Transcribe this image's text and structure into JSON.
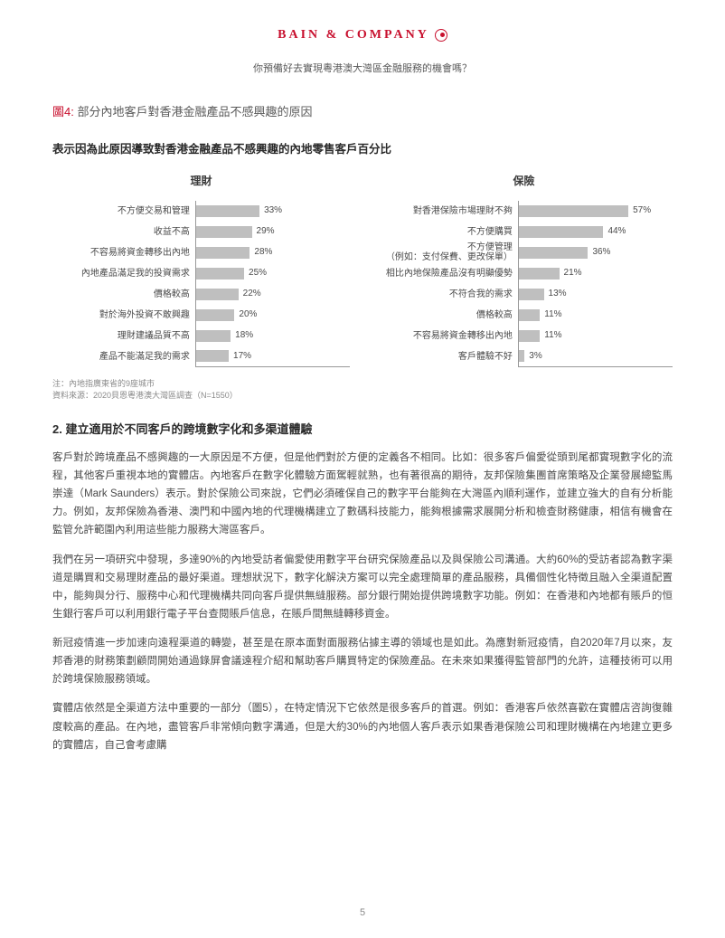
{
  "header": {
    "logo": "BAIN & COMPANY",
    "tagline": "你預備好去實現粵港澳大灣區金融服務的機會嗎？"
  },
  "figure": {
    "num": "圖4:",
    "title": "部分內地客戶對香港金融產品不感興趣的原因",
    "chart_title": "表示因為此原因導致對香港金融產品不感興趣的內地零售客戶百分比",
    "left_head": "理財",
    "right_head": "保險",
    "bar_color": "#bfbfbf",
    "axis_color": "#999999",
    "max_scale_pct": 80,
    "left_bars": [
      {
        "label": "不方便交易和管理",
        "value": 33,
        "text": "33%"
      },
      {
        "label": "收益不高",
        "value": 29,
        "text": "29%"
      },
      {
        "label": "不容易將資金轉移出內地",
        "value": 28,
        "text": "28%"
      },
      {
        "label": "內地產品滿足我的投資需求",
        "value": 25,
        "text": "25%"
      },
      {
        "label": "價格較高",
        "value": 22,
        "text": "22%"
      },
      {
        "label": "對於海外投資不敢興趣",
        "value": 20,
        "text": "20%"
      },
      {
        "label": "理財建議品質不高",
        "value": 18,
        "text": "18%"
      },
      {
        "label": "產品不能滿足我的需求",
        "value": 17,
        "text": "17%"
      }
    ],
    "right_bars": [
      {
        "label": "對香港保險市場理財不夠",
        "value": 57,
        "text": "57%"
      },
      {
        "label": "不方便購買",
        "value": 44,
        "text": "44%"
      },
      {
        "label": "不方便管理\n（例如：支付保費、更改保單）",
        "value": 36,
        "text": "36%"
      },
      {
        "label": "相比內地保險產品沒有明顯優勢",
        "value": 21,
        "text": "21%"
      },
      {
        "label": "不符合我的需求",
        "value": 13,
        "text": "13%"
      },
      {
        "label": "價格較高",
        "value": 11,
        "text": "11%"
      },
      {
        "label": "不容易將資金轉移出內地",
        "value": 11,
        "text": "11%"
      },
      {
        "label": "客戶體驗不好",
        "value": 3,
        "text": "3%"
      }
    ],
    "note_line1": "注：內地指廣東省的9座城市",
    "note_line2": "資料來源：2020貝恩粵港澳大灣區調查（N=1550）"
  },
  "section": {
    "heading": "2. 建立適用於不同客戶的跨境數字化和多渠道體驗",
    "p1": "客戶對於跨境產品不感興趣的一大原因是不方便，但是他們對於方便的定義各不相同。比如：很多客戶偏愛從頭到尾都實現數字化的流程，其他客戶重視本地的實體店。內地客戶在數字化體驗方面駕輕就熟，也有著很高的期待，友邦保險集團首席策略及企業發展總監馬崇達（Mark Saunders）表示。對於保險公司來說，它們必須確保自己的數字平台能夠在大灣區內順利運作，並建立強大的自有分析能力。例如，友邦保險為香港、澳門和中國內地的代理機構建立了數碼科技能力，能夠根據需求展開分析和檢查財務健康，相信有機會在監管允許範圍內利用這些能力服務大灣區客戶。",
    "p2": "我們在另一項研究中發現，多達90%的內地受訪者偏愛使用數字平台研究保險產品以及與保險公司溝通。大約60%的受訪者認為數字渠道是購買和交易理財產品的最好渠道。理想狀況下，數字化解決方案可以完全處理簡單的產品服務，具備個性化特徵且融入全渠道配置中，能夠與分行、服務中心和代理機構共同向客戶提供無縫服務。部分銀行開始提供跨境數字功能。例如：在香港和內地都有賬戶的恒生銀行客戶可以利用銀行電子平台查閱賬戶信息，在賬戶間無縫轉移資金。",
    "p3": "新冠疫情進一步加速向遠程渠道的轉變，甚至是在原本面對面服務佔據主導的領域也是如此。為應對新冠疫情，自2020年7月以來，友邦香港的財務策劃顧問開始通過錄屏會議遠程介紹和幫助客戶購買特定的保險產品。在未來如果獲得監管部門的允許，這種技術可以用於跨境保險服務領域。",
    "p4": "實體店依然是全渠道方法中重要的一部分（圖5），在特定情況下它依然是很多客戶的首選。例如：香港客戶依然喜歡在實體店咨詢復雜度較高的產品。在內地，盡管客戶非常傾向數字溝通，但是大約30%的內地個人客戶表示如果香港保險公司和理財機構在內地建立更多的實體店，自己會考慮購"
  },
  "page_number": "5"
}
